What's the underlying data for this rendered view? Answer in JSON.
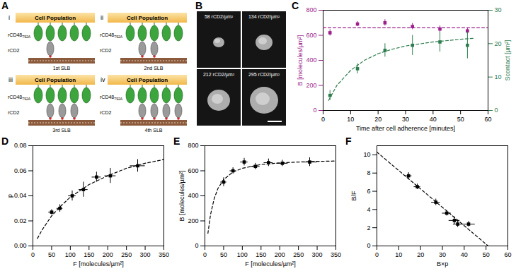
{
  "diagram": {
    "title": "A",
    "cell_label": "Cell Population",
    "ligand": {
      "text": "rCD48",
      "sub": "T92A"
    },
    "receptor": "rCD2",
    "ligand_count": 5,
    "panels": [
      {
        "label": "i",
        "bilayer": "1st SLB",
        "receptor_count": 1
      },
      {
        "label": "ii",
        "bilayer": "2nd SLB",
        "receptor_count": 2
      },
      {
        "label": "iii",
        "bilayer": "3rd SLB",
        "receptor_count": 3
      },
      {
        "label": "iv",
        "bilayer": "4th SLB",
        "receptor_count": 4
      }
    ]
  },
  "images": {
    "title": "B",
    "panels": [
      "58 rCD2/µm²",
      "134 rCD2/µm²",
      "212 rCD2/µm²",
      "295 rCD2/µm²"
    ]
  },
  "chart_data": [
    {
      "title": "C",
      "type": "scatter",
      "x_label": "Time after cell adherence [minutes]",
      "y_label": "B [molecules/µm²]",
      "y2_label": "Scontact [µm²]",
      "xlim": [
        0,
        60
      ],
      "xticks": [
        0,
        10,
        20,
        30,
        40,
        50,
        60
      ],
      "ylim": [
        0,
        800
      ],
      "yticks": [
        0,
        200,
        400,
        600,
        800
      ],
      "y2lim": [
        0,
        30
      ],
      "y2ticks": [
        0,
        10,
        20,
        30
      ],
      "series": [
        {
          "color": "#9c1f8c",
          "marker": "square",
          "x": [
            2.5,
            12.5,
            22.5,
            32.5,
            42.5,
            52.5
          ],
          "values": [
            620,
            690,
            700,
            670,
            650,
            635
          ],
          "y_err": [
            25,
            20,
            25,
            25,
            25,
            25
          ]
        },
        {
          "type": "line",
          "line_style": "dashed",
          "color": "#9c1f8c",
          "x": [
            0,
            60
          ],
          "values": [
            660,
            660
          ]
        },
        {
          "axis": "y2",
          "color": "#2e7d4f",
          "marker": "square",
          "x": [
            2.5,
            12.5,
            22.5,
            32.5,
            42.5,
            52.5
          ],
          "values": [
            4.5,
            12.5,
            18,
            19.5,
            20.5,
            19.5
          ],
          "y_err": [
            1.5,
            1.5,
            2,
            3,
            3,
            4
          ]
        },
        {
          "axis": "y2",
          "type": "line",
          "line_style": "dashed",
          "color": "#2e7d4f",
          "x": [
            2,
            5,
            10,
            15,
            20,
            25,
            30,
            40,
            50,
            55
          ],
          "values": [
            3,
            7.5,
            12,
            15,
            17,
            18.3,
            19.3,
            20.5,
            21.3,
            21.6
          ]
        }
      ]
    },
    {
      "title": "D",
      "type": "scatter",
      "x_label": "F [molecules/µm²]",
      "y_label": "p",
      "xlim": [
        0,
        350
      ],
      "xticks": [
        0,
        50,
        100,
        150,
        200,
        250,
        300,
        350
      ],
      "ylim": [
        0,
        0.08
      ],
      "yticks": [
        0,
        0.02,
        0.04,
        0.06,
        0.08
      ],
      "series": [
        {
          "color": "#000000",
          "marker": "square",
          "x": [
            50,
            72,
            105,
            135,
            170,
            207,
            280
          ],
          "values": [
            0.027,
            0.03,
            0.04,
            0.045,
            0.055,
            0.056,
            0.064
          ],
          "x_err": [
            8,
            8,
            10,
            12,
            12,
            15,
            20
          ],
          "y_err": [
            0.002,
            0.003,
            0.004,
            0.006,
            0.004,
            0.006,
            0.005
          ]
        },
        {
          "type": "line",
          "line_style": "dashed",
          "color": "#000000",
          "x": [
            12,
            25,
            50,
            75,
            100,
            150,
            200,
            250,
            300,
            350
          ],
          "values": [
            0.006,
            0.013,
            0.024,
            0.032,
            0.039,
            0.049,
            0.056,
            0.062,
            0.066,
            0.069
          ]
        }
      ]
    },
    {
      "title": "E",
      "type": "scatter",
      "x_label": "F [molecules/µm²]",
      "y_label": "B [molecules/µm²]",
      "xlim": [
        0,
        350
      ],
      "xticks": [
        0,
        50,
        100,
        150,
        200,
        250,
        300,
        350
      ],
      "ylim": [
        0,
        800
      ],
      "yticks": [
        0,
        200,
        400,
        600,
        800
      ],
      "series": [
        {
          "color": "#000000",
          "marker": "square",
          "x": [
            50,
            75,
            105,
            135,
            170,
            207,
            280
          ],
          "values": [
            510,
            600,
            670,
            635,
            665,
            660,
            670
          ],
          "x_err": [
            8,
            8,
            10,
            12,
            12,
            15,
            20
          ],
          "y_err": [
            35,
            25,
            30,
            25,
            30,
            25,
            35
          ]
        },
        {
          "type": "line",
          "line_style": "dashed",
          "color": "#000000",
          "x": [
            8,
            15,
            25,
            35,
            50,
            75,
            100,
            150,
            200,
            250,
            300,
            350
          ],
          "values": [
            100,
            250,
            380,
            460,
            530,
            590,
            620,
            650,
            663,
            670,
            675,
            678
          ]
        }
      ]
    },
    {
      "title": "F",
      "type": "scatter",
      "x_label": "B×p",
      "y_label": "B/F",
      "xlim": [
        0,
        60
      ],
      "xticks": [
        0,
        10,
        20,
        30,
        40,
        50,
        60
      ],
      "ylim": [
        0,
        11
      ],
      "yticks": [
        0,
        2,
        4,
        6,
        8,
        10
      ],
      "series": [
        {
          "color": "#000000",
          "marker": "square",
          "x": [
            14.5,
            18.5,
            27,
            32,
            35.5,
            37,
            42
          ],
          "values": [
            7.7,
            6.5,
            4.8,
            3.6,
            2.8,
            2.4,
            2.4
          ],
          "x_err": [
            1.5,
            1.5,
            2,
            2,
            2.5,
            2,
            3
          ],
          "y_err": [
            0.35,
            0.3,
            0.35,
            0.3,
            0.4,
            0.35,
            0.3
          ]
        },
        {
          "type": "line",
          "line_style": "dashed",
          "color": "#000000",
          "x": [
            0,
            51
          ],
          "values": [
            10.3,
            0
          ]
        }
      ]
    }
  ]
}
